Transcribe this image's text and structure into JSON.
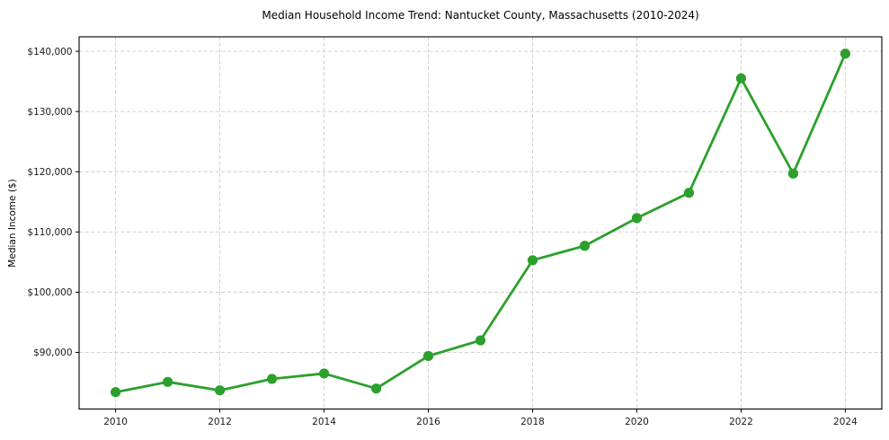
{
  "figure": {
    "background": "#ffffff"
  },
  "chart_data": {
    "type": "line",
    "title": "Median Household Income Trend: Nantucket County, Massachusetts (2010-2024)",
    "xlabel": "",
    "ylabel": "Median Income ($)",
    "x": [
      2010,
      2011,
      2012,
      2013,
      2014,
      2015,
      2016,
      2017,
      2018,
      2019,
      2020,
      2021,
      2022,
      2023,
      2024
    ],
    "series": [
      {
        "name": "Median Household Income",
        "values": [
          83400,
          85100,
          83700,
          85600,
          86500,
          84000,
          89400,
          92000,
          105300,
          107700,
          112300,
          116500,
          135500,
          119700,
          139600
        ],
        "color": "#2ca02c"
      }
    ],
    "xlim": [
      2009.3,
      2024.7
    ],
    "ylim": [
      80600,
      142400
    ],
    "xticks": {
      "values": [
        2010,
        2012,
        2014,
        2016,
        2018,
        2020,
        2022,
        2024
      ],
      "labels": [
        "2010",
        "2012",
        "2014",
        "2016",
        "2018",
        "2020",
        "2022",
        "2024"
      ]
    },
    "yticks": {
      "values": [
        90000,
        100000,
        110000,
        120000,
        130000,
        140000
      ],
      "labels": [
        "$90,000",
        "$100,000",
        "$110,000",
        "$120,000",
        "$130,000",
        "$140,000"
      ]
    },
    "grid": true,
    "legend": "none",
    "style": {
      "grid_color": "#cccccc",
      "grid_dash": "4 2.6",
      "grid_width": 0.9,
      "spine_color": "#000000",
      "spine_width": 1.1,
      "tick_color": "#000000",
      "tick_length": 4,
      "line_width": 2.8,
      "marker_radius": 5.6
    }
  }
}
